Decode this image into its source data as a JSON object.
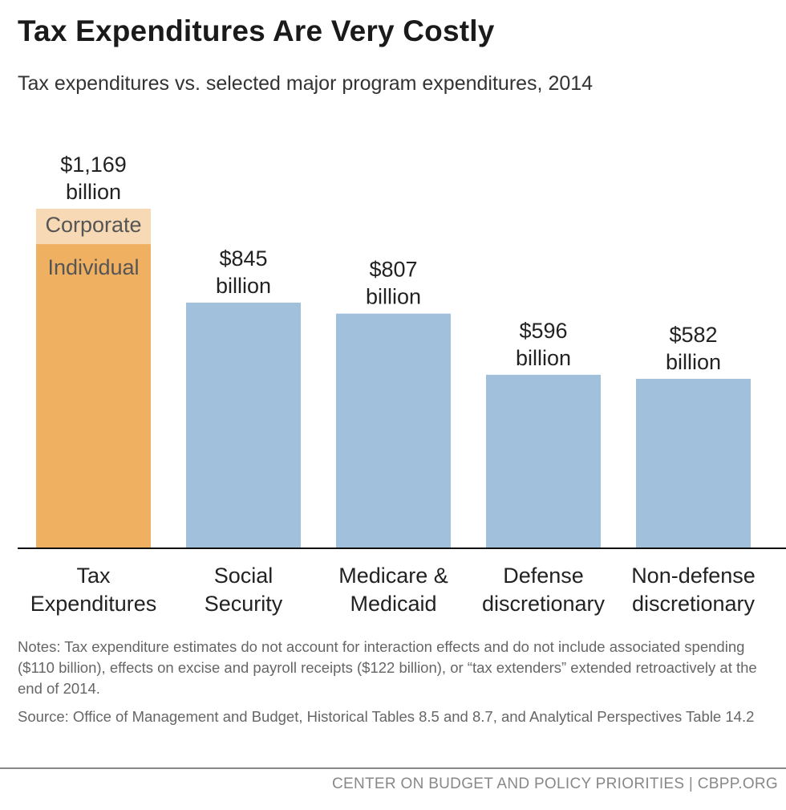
{
  "title": "Tax Expenditures Are Very Costly",
  "subtitle": "Tax expenditures vs. selected major program expenditures, 2014",
  "notes": "Notes: Tax expenditure estimates do not account for interaction effects and do not include associated spending ($110 billion), effects on excise and payroll receipts ($122 billion), or “tax extenders” extended retroactively at the end of 2014.",
  "source": "Source: Office of Management and Budget, Historical Tables 8.5 and 8.7, and Analytical Perspectives Table 14.2",
  "footer": "CENTER ON BUDGET AND POLICY PRIORITIES | CBPP.ORG",
  "chart_data": {
    "type": "bar",
    "title": "Tax Expenditures Are Very Costly",
    "xlabel": "",
    "ylabel": "",
    "ylim": [
      0,
      1169
    ],
    "grid": false,
    "units": "billion dollars",
    "categories": [
      [
        "Tax",
        "Expenditures"
      ],
      [
        "Social",
        "Security"
      ],
      [
        "Medicare &",
        "Medicaid"
      ],
      [
        "Defense",
        "discretionary"
      ],
      [
        "Non-defense",
        "discretionary"
      ]
    ],
    "values": [
      1169,
      845,
      807,
      596,
      582
    ],
    "value_labels": [
      [
        "$1,169",
        "billion"
      ],
      [
        "$845",
        "billion"
      ],
      [
        "$807",
        "billion"
      ],
      [
        "$596",
        "billion"
      ],
      [
        "$582",
        "billion"
      ]
    ],
    "stack_first_bar": [
      {
        "name": "Individual",
        "value": 1047,
        "color": "#EFB062"
      },
      {
        "name": "Corporate",
        "value": 122,
        "color": "#F7DAB5"
      }
    ],
    "colors": {
      "tax": "#EFB062",
      "program": "#A0C0DC",
      "axis": "#111111"
    }
  }
}
